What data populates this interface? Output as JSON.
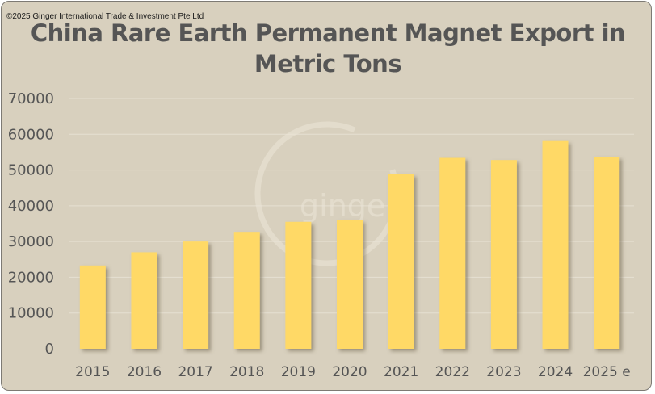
{
  "copyright": "©2025 Ginger International Trade & Investment Pte Ltd",
  "watermark": "ginger",
  "chart_data": {
    "type": "bar",
    "title_line1": "China Rare Earth Permanent Magnet Export in",
    "title_line2": "Metric Tons",
    "categories": [
      "2015",
      "2016",
      "2017",
      "2018",
      "2019",
      "2020",
      "2021",
      "2022",
      "2023",
      "2024",
      "2025 e"
    ],
    "values": [
      23300,
      27000,
      30000,
      32700,
      35500,
      36000,
      48800,
      53400,
      52800,
      58100,
      53700
    ],
    "yticks": [
      "0",
      "10000",
      "20000",
      "30000",
      "40000",
      "50000",
      "60000",
      "70000"
    ],
    "ylim": [
      0,
      70000
    ],
    "grid": true,
    "bar_color": "#ffd966",
    "xlabel": "",
    "ylabel": ""
  }
}
